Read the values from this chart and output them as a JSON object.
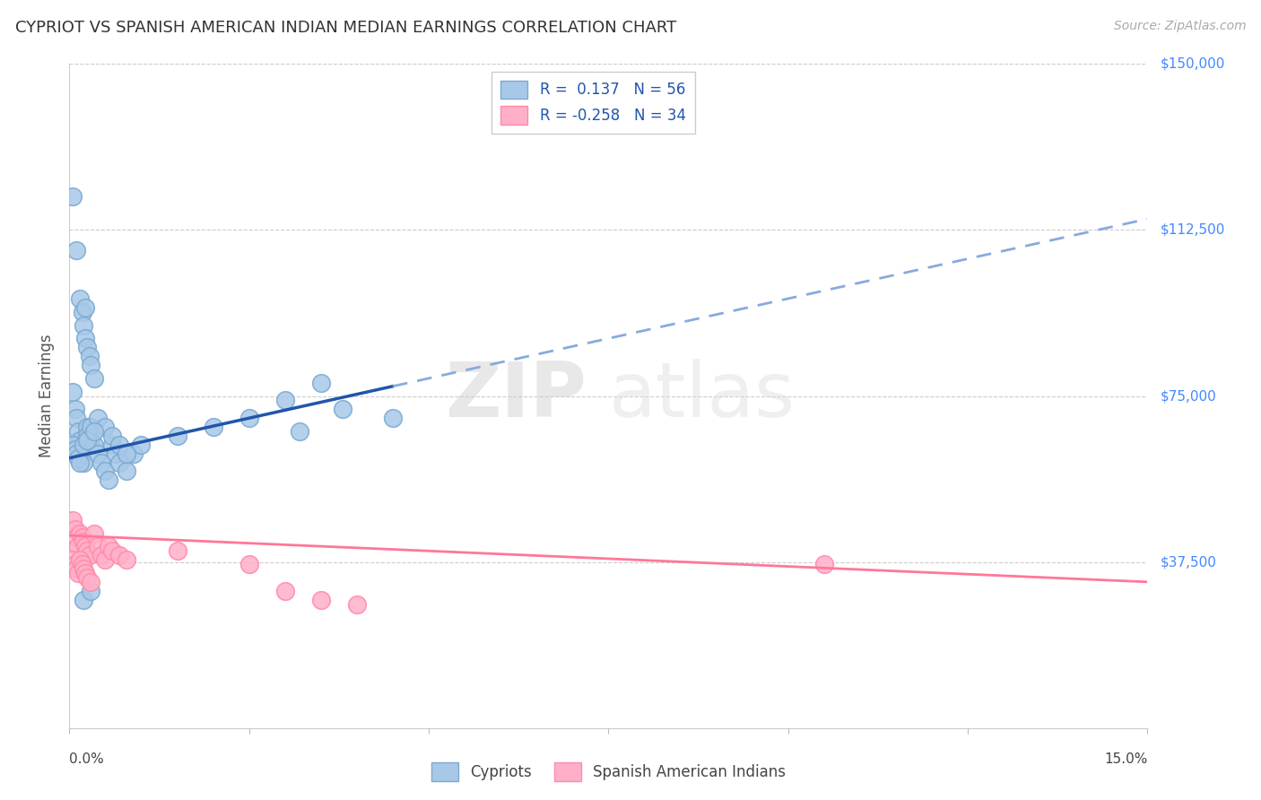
{
  "title": "CYPRIOT VS SPANISH AMERICAN INDIAN MEDIAN EARNINGS CORRELATION CHART",
  "source": "Source: ZipAtlas.com",
  "ylabel": "Median Earnings",
  "yticks": [
    0,
    37500,
    75000,
    112500,
    150000
  ],
  "ytick_labels": [
    "",
    "$37,500",
    "$75,000",
    "$112,500",
    "$150,000"
  ],
  "xmin": 0.0,
  "xmax": 15.0,
  "ymin": 0,
  "ymax": 150000,
  "blue_scatter_face": "#A8C8E8",
  "blue_scatter_edge": "#7AAAD0",
  "pink_scatter_face": "#FFB0C8",
  "pink_scatter_edge": "#FF8AAA",
  "blue_line_solid_color": "#2255AA",
  "blue_line_dashed_color": "#88AADE",
  "pink_line_color": "#FF7799",
  "blue_R": "0.137",
  "blue_N": "56",
  "pink_R": "-0.258",
  "pink_N": "34",
  "legend_label_blue": "Cypriots",
  "legend_label_pink": "Spanish American Indians",
  "watermark": "ZIPatlas",
  "grid_color": "#CCCCCC",
  "blue_line_x0": 0.0,
  "blue_line_y0": 61000,
  "blue_line_x1": 15.0,
  "blue_line_y1": 115000,
  "blue_solid_end_x": 4.5,
  "pink_line_x0": 0.0,
  "pink_line_y0": 43500,
  "pink_line_x1": 15.0,
  "pink_line_y1": 33000,
  "cypriot_x": [
    0.05,
    0.1,
    0.15,
    0.18,
    0.2,
    0.22,
    0.25,
    0.28,
    0.3,
    0.35,
    0.05,
    0.08,
    0.1,
    0.12,
    0.15,
    0.18,
    0.2,
    0.22,
    0.25,
    0.3,
    0.05,
    0.08,
    0.1,
    0.12,
    0.15,
    0.2,
    0.25,
    0.3,
    0.35,
    0.4,
    0.45,
    0.5,
    0.55,
    0.6,
    0.65,
    0.7,
    0.8,
    0.9,
    1.0,
    1.5,
    2.0,
    2.5,
    3.0,
    3.5,
    4.5,
    0.4,
    0.5,
    0.6,
    0.7,
    0.8,
    0.2,
    0.3,
    3.2,
    3.8,
    0.25,
    0.35
  ],
  "cypriot_y": [
    120000,
    108000,
    97000,
    94000,
    91000,
    88000,
    86000,
    84000,
    82000,
    79000,
    76000,
    72000,
    70000,
    67000,
    65000,
    62000,
    60000,
    95000,
    68000,
    65000,
    64000,
    63000,
    62000,
    61000,
    60000,
    64000,
    66000,
    68000,
    64000,
    62000,
    60000,
    58000,
    56000,
    64000,
    62000,
    60000,
    58000,
    62000,
    64000,
    66000,
    68000,
    70000,
    74000,
    78000,
    70000,
    70000,
    68000,
    66000,
    64000,
    62000,
    29000,
    31000,
    67000,
    72000,
    65000,
    67000
  ],
  "spanish_x": [
    0.05,
    0.08,
    0.1,
    0.12,
    0.15,
    0.18,
    0.2,
    0.22,
    0.25,
    0.28,
    0.05,
    0.08,
    0.1,
    0.12,
    0.15,
    0.18,
    0.2,
    0.22,
    0.25,
    0.3,
    0.35,
    0.4,
    0.45,
    0.5,
    0.55,
    0.6,
    0.7,
    0.8,
    1.5,
    2.5,
    3.0,
    3.5,
    4.0,
    10.5
  ],
  "spanish_y": [
    47000,
    45000,
    43000,
    41000,
    44000,
    43000,
    42000,
    41000,
    40000,
    39000,
    38000,
    37000,
    36000,
    35000,
    38000,
    37000,
    36000,
    35000,
    34000,
    33000,
    44000,
    41000,
    39000,
    38000,
    41000,
    40000,
    39000,
    38000,
    40000,
    37000,
    31000,
    29000,
    28000,
    37000
  ]
}
